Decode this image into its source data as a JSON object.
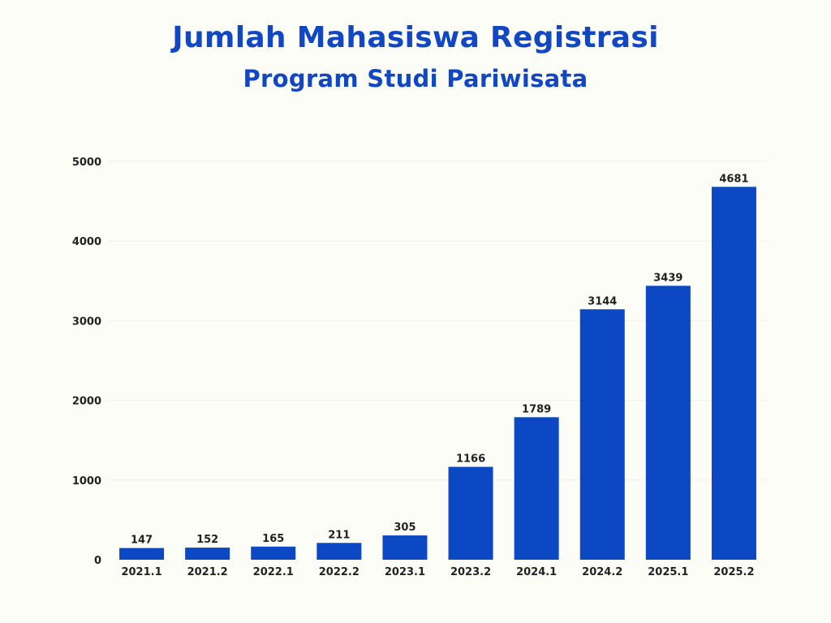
{
  "chart_data": {
    "type": "bar",
    "title": "Jumlah Mahasiswa Registrasi",
    "subtitle": "Program Studi Pariwisata",
    "xlabel": "",
    "ylabel": "",
    "categories": [
      "2021.1",
      "2021.2",
      "2022.1",
      "2022.2",
      "2023.1",
      "2023.2",
      "2024.1",
      "2024.2",
      "2025.1",
      "2025.2"
    ],
    "values": [
      147,
      152,
      165,
      211,
      305,
      1166,
      1789,
      3144,
      3439,
      4681
    ],
    "ylim": [
      0,
      5000
    ],
    "yticks": [
      0,
      1000,
      2000,
      3000,
      4000,
      5000
    ],
    "grid": true,
    "legend": "none",
    "colors": {
      "bar": "#0c47c4",
      "title": "#1247c4",
      "grid": "#efefea",
      "text": "#222222",
      "background": "#fdfdf8"
    }
  }
}
